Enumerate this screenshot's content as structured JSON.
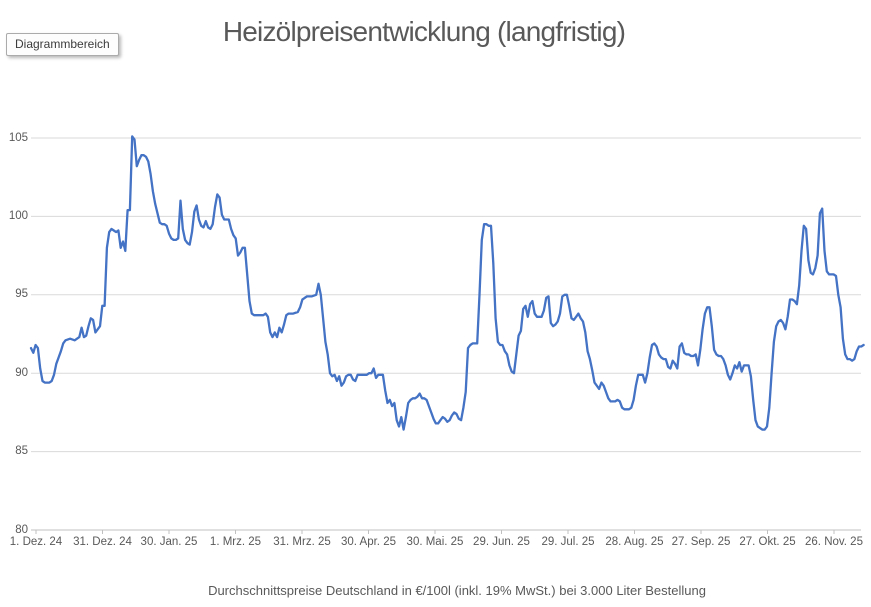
{
  "tooltip": {
    "label": "Diagrammbereich"
  },
  "chart_data": {
    "type": "line",
    "title": "Heizölpreisentwicklung (langfristig)",
    "footnote": "Durchschnittspreise Deutschland in €/100l (inkl. 19% MwSt.) bei 3.000 Liter Bestellung",
    "legend": "none",
    "grid": "horizontal",
    "ylim": [
      80,
      106.5
    ],
    "y_ticks": [
      80,
      85,
      90,
      95,
      100,
      105
    ],
    "x_tick_interval_days": 30,
    "x_tick_labels": [
      "1. Dez. 24",
      "31. Dez. 24",
      "30. Jan. 25",
      "1. Mrz. 25",
      "31. Mrz. 25",
      "30. Apr. 25",
      "30. Mai. 25",
      "29. Jun. 25",
      "29. Jul. 25",
      "28. Aug. 25",
      "27. Sep. 25",
      "27. Okt. 25",
      "26. Nov. 25"
    ],
    "colors": {
      "series": "#4472C4",
      "grid": "#DADADA",
      "axis": "#C0C0C0",
      "labels": "#595959"
    },
    "points_day_value": [
      [
        0,
        91.6
      ],
      [
        1,
        91.3
      ],
      [
        2,
        91.8
      ],
      [
        3,
        91.6
      ],
      [
        4,
        90.3
      ],
      [
        5,
        89.5
      ],
      [
        6,
        89.4
      ],
      [
        8,
        89.4
      ],
      [
        9,
        89.5
      ],
      [
        10,
        89.9
      ],
      [
        11,
        90.6
      ],
      [
        12,
        91.0
      ],
      [
        13,
        91.4
      ],
      [
        14,
        91.9
      ],
      [
        15,
        92.1
      ],
      [
        17,
        92.2
      ],
      [
        19,
        92.1
      ],
      [
        21,
        92.3
      ],
      [
        22,
        92.9
      ],
      [
        23,
        92.3
      ],
      [
        24,
        92.4
      ],
      [
        25,
        93.0
      ],
      [
        26,
        93.5
      ],
      [
        27,
        93.4
      ],
      [
        28,
        92.6
      ],
      [
        29,
        92.8
      ],
      [
        30,
        93.0
      ],
      [
        31,
        94.3
      ],
      [
        32,
        94.3
      ],
      [
        33,
        98.0
      ],
      [
        34,
        99.0
      ],
      [
        35,
        99.2
      ],
      [
        36,
        99.1
      ],
      [
        37,
        99.0
      ],
      [
        38,
        99.1
      ],
      [
        39,
        98.0
      ],
      [
        40,
        98.4
      ],
      [
        41,
        97.8
      ],
      [
        42,
        100.4
      ],
      [
        43,
        100.4
      ],
      [
        44,
        105.1
      ],
      [
        45,
        104.9
      ],
      [
        46,
        103.2
      ],
      [
        47,
        103.6
      ],
      [
        48,
        103.9
      ],
      [
        49,
        103.9
      ],
      [
        50,
        103.8
      ],
      [
        51,
        103.5
      ],
      [
        52,
        102.7
      ],
      [
        53,
        101.6
      ],
      [
        54,
        100.8
      ],
      [
        55,
        100.2
      ],
      [
        56,
        99.6
      ],
      [
        57,
        99.5
      ],
      [
        58,
        99.5
      ],
      [
        59,
        99.4
      ],
      [
        60,
        98.9
      ],
      [
        61,
        98.6
      ],
      [
        62,
        98.5
      ],
      [
        63,
        98.5
      ],
      [
        64,
        98.6
      ],
      [
        65,
        101.0
      ],
      [
        66,
        99.2
      ],
      [
        67,
        98.5
      ],
      [
        68,
        98.3
      ],
      [
        69,
        98.2
      ],
      [
        70,
        99.0
      ],
      [
        71,
        100.3
      ],
      [
        72,
        100.7
      ],
      [
        73,
        99.8
      ],
      [
        74,
        99.4
      ],
      [
        75,
        99.3
      ],
      [
        76,
        99.7
      ],
      [
        77,
        99.3
      ],
      [
        78,
        99.2
      ],
      [
        79,
        99.5
      ],
      [
        80,
        100.6
      ],
      [
        81,
        101.4
      ],
      [
        82,
        101.2
      ],
      [
        83,
        100.1
      ],
      [
        84,
        99.8
      ],
      [
        85,
        99.8
      ],
      [
        86,
        99.8
      ],
      [
        87,
        99.2
      ],
      [
        88,
        98.8
      ],
      [
        89,
        98.6
      ],
      [
        90,
        97.5
      ],
      [
        91,
        97.7
      ],
      [
        92,
        98.0
      ],
      [
        93,
        98.0
      ],
      [
        94,
        96.3
      ],
      [
        95,
        94.6
      ],
      [
        96,
        93.8
      ],
      [
        97,
        93.7
      ],
      [
        99,
        93.7
      ],
      [
        101,
        93.7
      ],
      [
        102,
        93.8
      ],
      [
        103,
        93.6
      ],
      [
        104,
        92.6
      ],
      [
        105,
        92.3
      ],
      [
        106,
        92.6
      ],
      [
        107,
        92.3
      ],
      [
        108,
        92.9
      ],
      [
        109,
        92.6
      ],
      [
        110,
        93.1
      ],
      [
        111,
        93.7
      ],
      [
        112,
        93.8
      ],
      [
        114,
        93.8
      ],
      [
        116,
        93.9
      ],
      [
        117,
        94.2
      ],
      [
        118,
        94.7
      ],
      [
        119,
        94.8
      ],
      [
        120,
        94.9
      ],
      [
        122,
        94.9
      ],
      [
        124,
        95.0
      ],
      [
        125,
        95.7
      ],
      [
        126,
        95.0
      ],
      [
        127,
        93.5
      ],
      [
        128,
        92.0
      ],
      [
        129,
        91.2
      ],
      [
        130,
        90.0
      ],
      [
        131,
        89.8
      ],
      [
        132,
        89.9
      ],
      [
        133,
        89.5
      ],
      [
        134,
        89.8
      ],
      [
        135,
        89.2
      ],
      [
        136,
        89.4
      ],
      [
        137,
        89.8
      ],
      [
        138,
        89.9
      ],
      [
        139,
        89.9
      ],
      [
        140,
        89.6
      ],
      [
        141,
        89.5
      ],
      [
        142,
        89.9
      ],
      [
        144,
        89.9
      ],
      [
        146,
        89.9
      ],
      [
        147,
        90.0
      ],
      [
        148,
        90.0
      ],
      [
        149,
        90.3
      ],
      [
        150,
        89.7
      ],
      [
        151,
        89.9
      ],
      [
        153,
        89.9
      ],
      [
        154,
        88.9
      ],
      [
        155,
        88.1
      ],
      [
        156,
        88.3
      ],
      [
        157,
        87.9
      ],
      [
        158,
        88.1
      ],
      [
        159,
        87.0
      ],
      [
        160,
        86.6
      ],
      [
        161,
        87.2
      ],
      [
        162,
        86.4
      ],
      [
        163,
        87.2
      ],
      [
        164,
        88.1
      ],
      [
        165,
        88.3
      ],
      [
        166,
        88.4
      ],
      [
        167,
        88.4
      ],
      [
        168,
        88.5
      ],
      [
        169,
        88.7
      ],
      [
        170,
        88.4
      ],
      [
        171,
        88.4
      ],
      [
        172,
        88.3
      ],
      [
        173,
        87.9
      ],
      [
        174,
        87.5
      ],
      [
        175,
        87.1
      ],
      [
        176,
        86.8
      ],
      [
        177,
        86.8
      ],
      [
        178,
        87.0
      ],
      [
        179,
        87.2
      ],
      [
        180,
        87.1
      ],
      [
        181,
        86.9
      ],
      [
        182,
        87.0
      ],
      [
        183,
        87.3
      ],
      [
        184,
        87.5
      ],
      [
        185,
        87.4
      ],
      [
        186,
        87.1
      ],
      [
        187,
        87.0
      ],
      [
        188,
        87.8
      ],
      [
        189,
        88.8
      ],
      [
        190,
        91.6
      ],
      [
        191,
        91.8
      ],
      [
        192,
        91.9
      ],
      [
        193,
        91.9
      ],
      [
        194,
        91.9
      ],
      [
        195,
        95.0
      ],
      [
        196,
        98.5
      ],
      [
        197,
        99.5
      ],
      [
        198,
        99.5
      ],
      [
        199,
        99.4
      ],
      [
        200,
        99.4
      ],
      [
        201,
        97.0
      ],
      [
        202,
        93.5
      ],
      [
        203,
        92.0
      ],
      [
        204,
        91.8
      ],
      [
        205,
        91.8
      ],
      [
        206,
        91.4
      ],
      [
        207,
        91.2
      ],
      [
        208,
        90.5
      ],
      [
        209,
        90.1
      ],
      [
        210,
        90.0
      ],
      [
        211,
        91.2
      ],
      [
        212,
        92.4
      ],
      [
        213,
        92.7
      ],
      [
        214,
        94.1
      ],
      [
        215,
        94.3
      ],
      [
        216,
        93.6
      ],
      [
        217,
        94.4
      ],
      [
        218,
        94.6
      ],
      [
        219,
        93.8
      ],
      [
        220,
        93.6
      ],
      [
        222,
        93.6
      ],
      [
        223,
        94.0
      ],
      [
        224,
        94.8
      ],
      [
        225,
        94.9
      ],
      [
        226,
        93.2
      ],
      [
        227,
        93.0
      ],
      [
        228,
        93.1
      ],
      [
        229,
        93.3
      ],
      [
        230,
        93.8
      ],
      [
        231,
        94.9
      ],
      [
        232,
        95.0
      ],
      [
        233,
        95.0
      ],
      [
        234,
        94.3
      ],
      [
        235,
        93.5
      ],
      [
        236,
        93.4
      ],
      [
        237,
        93.6
      ],
      [
        238,
        93.8
      ],
      [
        239,
        93.5
      ],
      [
        240,
        93.3
      ],
      [
        241,
        92.6
      ],
      [
        242,
        91.4
      ],
      [
        243,
        90.9
      ],
      [
        244,
        90.2
      ],
      [
        245,
        89.4
      ],
      [
        246,
        89.2
      ],
      [
        247,
        89.0
      ],
      [
        248,
        89.4
      ],
      [
        249,
        89.2
      ],
      [
        250,
        88.8
      ],
      [
        251,
        88.4
      ],
      [
        252,
        88.2
      ],
      [
        254,
        88.2
      ],
      [
        255,
        88.3
      ],
      [
        256,
        88.2
      ],
      [
        257,
        87.8
      ],
      [
        258,
        87.7
      ],
      [
        260,
        87.7
      ],
      [
        261,
        87.8
      ],
      [
        262,
        88.3
      ],
      [
        263,
        89.2
      ],
      [
        264,
        89.9
      ],
      [
        266,
        89.9
      ],
      [
        267,
        89.4
      ],
      [
        268,
        90.0
      ],
      [
        269,
        91.0
      ],
      [
        270,
        91.8
      ],
      [
        271,
        91.9
      ],
      [
        272,
        91.7
      ],
      [
        273,
        91.2
      ],
      [
        274,
        91.0
      ],
      [
        275,
        90.9
      ],
      [
        276,
        90.9
      ],
      [
        277,
        90.4
      ],
      [
        278,
        90.3
      ],
      [
        279,
        90.8
      ],
      [
        280,
        90.6
      ],
      [
        281,
        90.3
      ],
      [
        282,
        91.7
      ],
      [
        283,
        91.9
      ],
      [
        284,
        91.3
      ],
      [
        285,
        91.2
      ],
      [
        286,
        91.2
      ],
      [
        287,
        91.1
      ],
      [
        288,
        91.1
      ],
      [
        289,
        91.2
      ],
      [
        290,
        90.5
      ],
      [
        291,
        91.5
      ],
      [
        292,
        92.8
      ],
      [
        293,
        93.8
      ],
      [
        294,
        94.2
      ],
      [
        295,
        94.2
      ],
      [
        296,
        93.0
      ],
      [
        297,
        91.5
      ],
      [
        298,
        91.2
      ],
      [
        299,
        91.1
      ],
      [
        300,
        91.1
      ],
      [
        301,
        90.9
      ],
      [
        302,
        90.5
      ],
      [
        303,
        89.9
      ],
      [
        304,
        89.6
      ],
      [
        305,
        90.0
      ],
      [
        306,
        90.5
      ],
      [
        307,
        90.3
      ],
      [
        308,
        90.7
      ],
      [
        309,
        90.1
      ],
      [
        310,
        90.5
      ],
      [
        312,
        90.5
      ],
      [
        313,
        89.8
      ],
      [
        314,
        88.3
      ],
      [
        315,
        87.0
      ],
      [
        316,
        86.6
      ],
      [
        317,
        86.5
      ],
      [
        318,
        86.4
      ],
      [
        319,
        86.4
      ],
      [
        320,
        86.6
      ],
      [
        321,
        87.8
      ],
      [
        322,
        90.0
      ],
      [
        323,
        92.0
      ],
      [
        324,
        93.0
      ],
      [
        325,
        93.3
      ],
      [
        326,
        93.4
      ],
      [
        327,
        93.2
      ],
      [
        328,
        92.8
      ],
      [
        329,
        93.6
      ],
      [
        330,
        94.7
      ],
      [
        331,
        94.7
      ],
      [
        332,
        94.6
      ],
      [
        333,
        94.4
      ],
      [
        334,
        95.6
      ],
      [
        335,
        97.8
      ],
      [
        336,
        99.4
      ],
      [
        337,
        99.2
      ],
      [
        338,
        97.2
      ],
      [
        339,
        96.4
      ],
      [
        340,
        96.3
      ],
      [
        341,
        96.7
      ],
      [
        342,
        97.5
      ],
      [
        343,
        100.2
      ],
      [
        344,
        100.5
      ],
      [
        345,
        97.8
      ],
      [
        346,
        96.5
      ],
      [
        347,
        96.3
      ],
      [
        349,
        96.3
      ],
      [
        350,
        96.2
      ],
      [
        351,
        95.0
      ],
      [
        352,
        94.2
      ],
      [
        353,
        92.2
      ],
      [
        354,
        91.2
      ],
      [
        355,
        90.9
      ],
      [
        356,
        90.9
      ],
      [
        357,
        90.8
      ],
      [
        358,
        90.9
      ],
      [
        359,
        91.4
      ],
      [
        360,
        91.7
      ],
      [
        361,
        91.7
      ],
      [
        362,
        91.8
      ]
    ]
  }
}
